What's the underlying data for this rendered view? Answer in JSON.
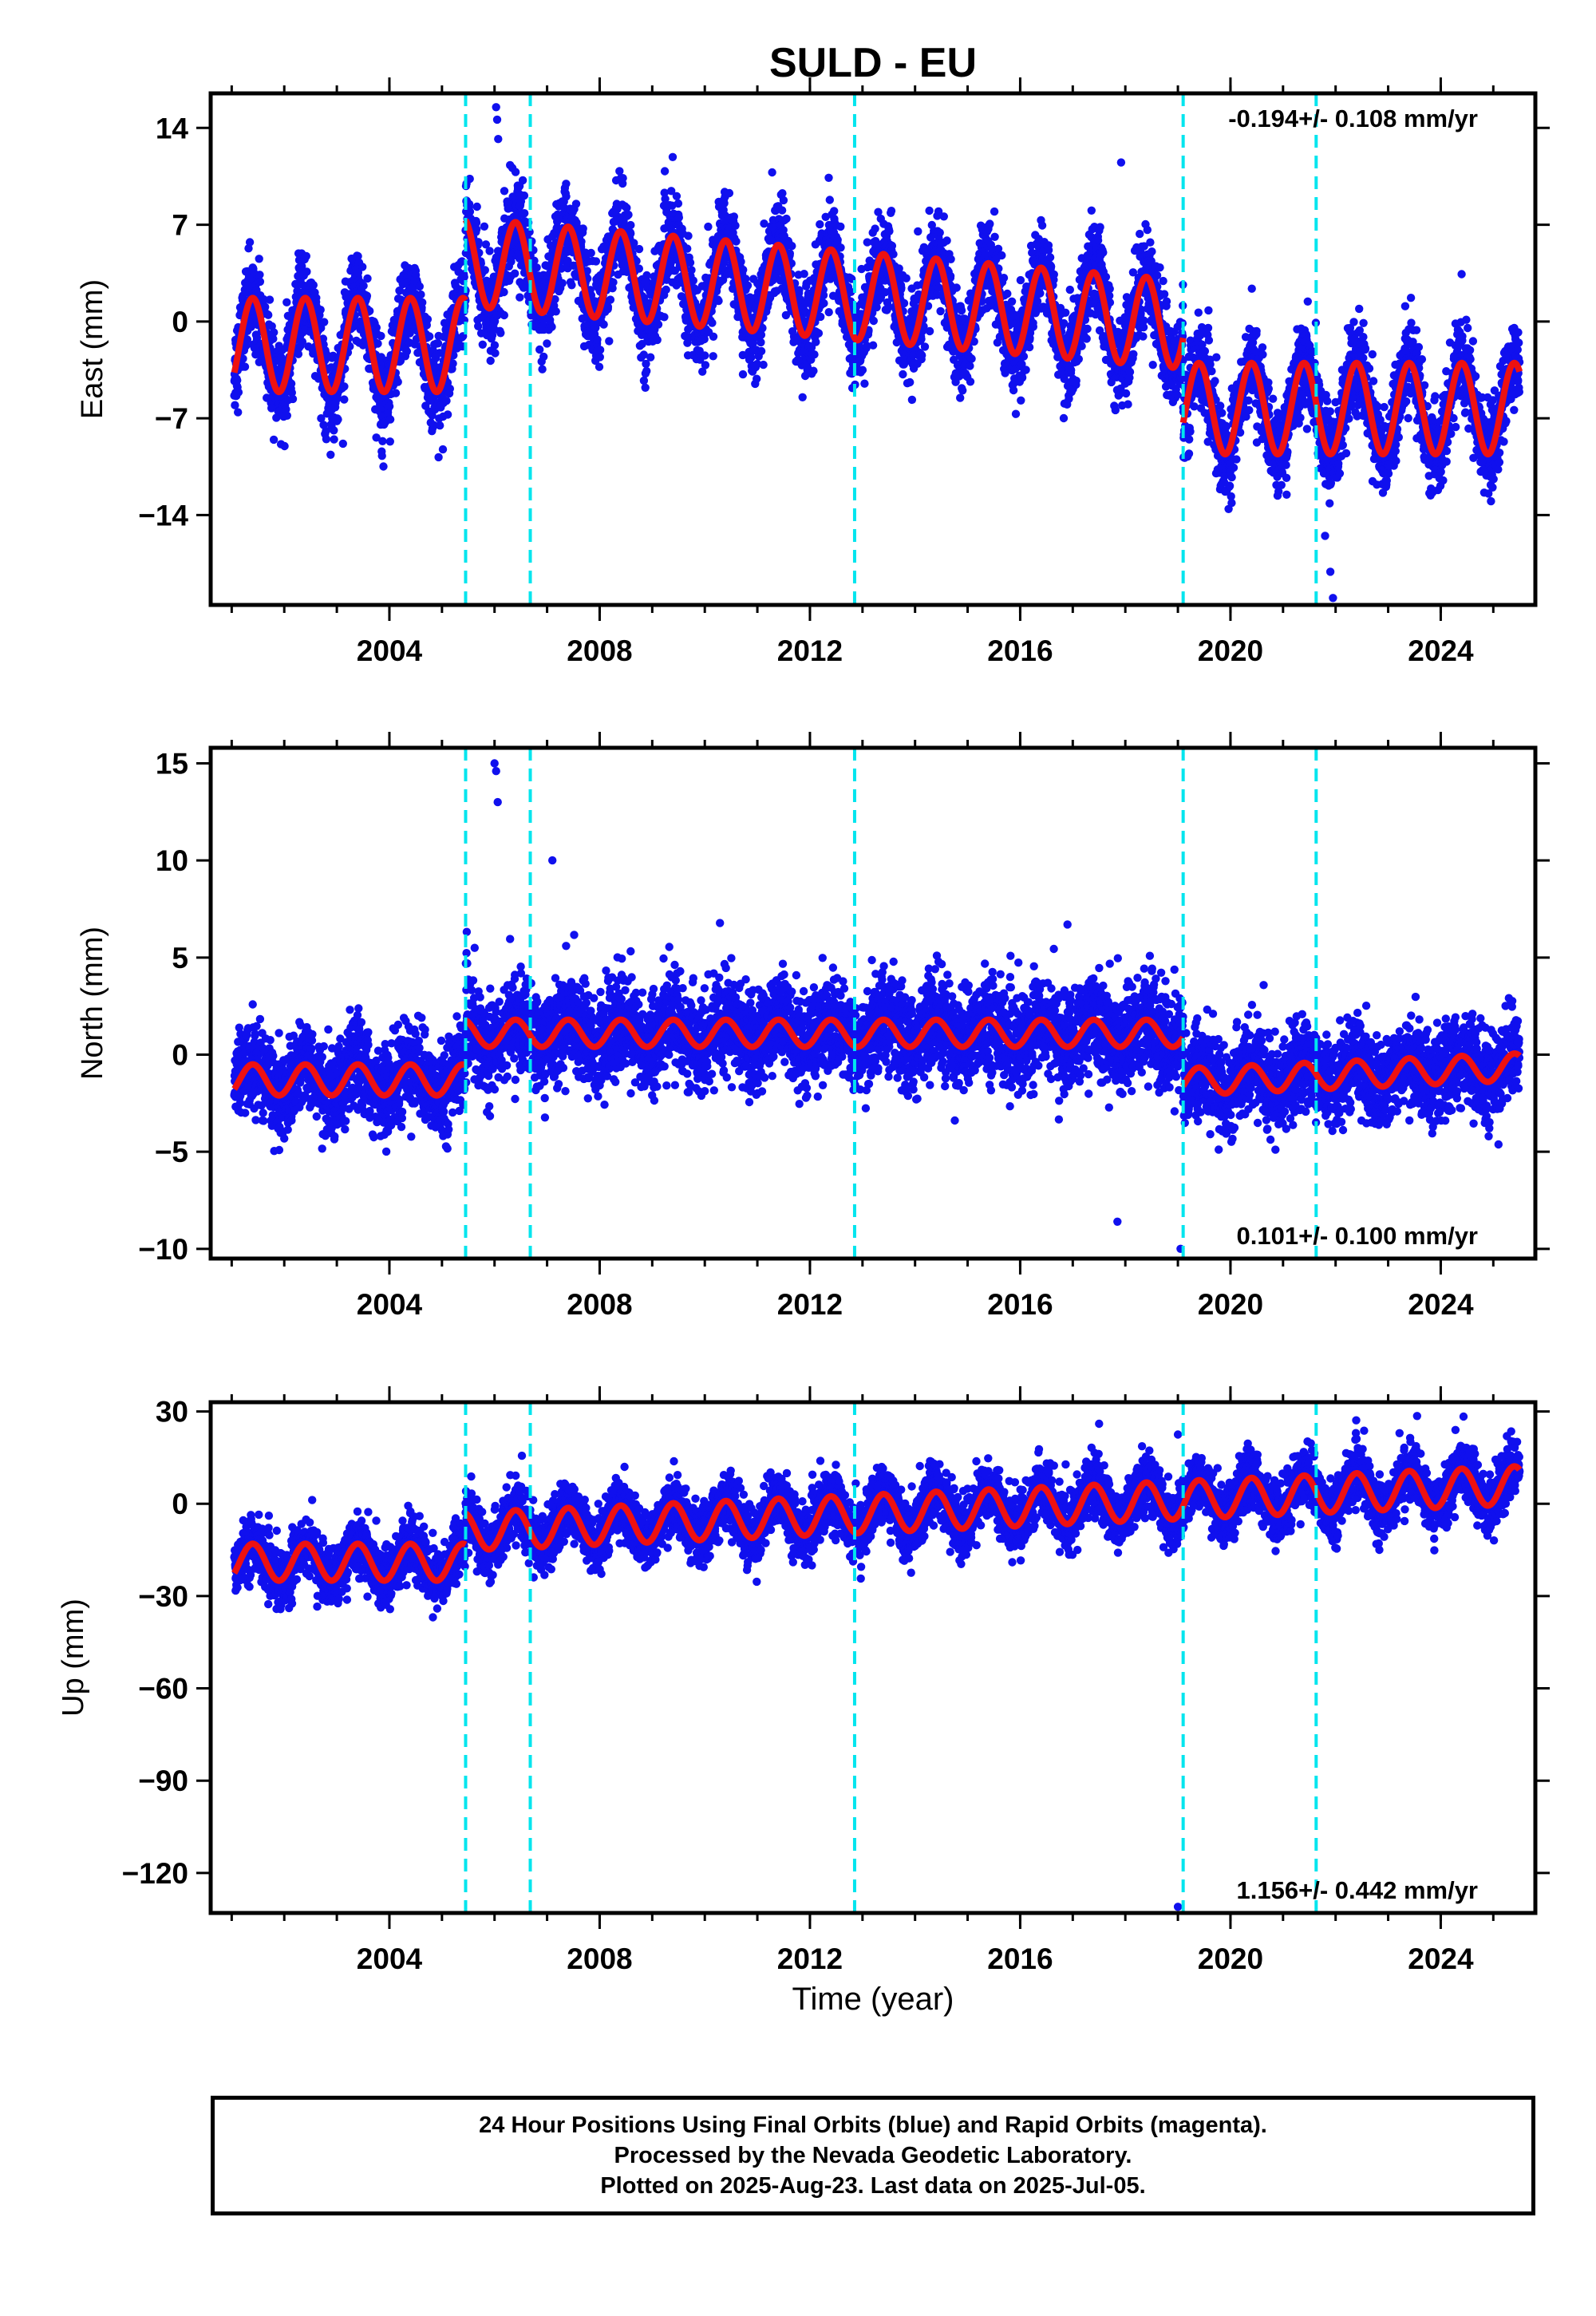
{
  "title": "SULD - EU",
  "xlabel": "Time (year)",
  "colors": {
    "data_points": "#1010ee",
    "model_fit": "#ee1111",
    "event_lines": "#00e5ee",
    "frame": "#000000"
  },
  "footer": {
    "lines": [
      "24 Hour Positions Using Final Orbits (blue) and Rapid Orbits (magenta).",
      "Processed by the Nevada Geodetic Laboratory.",
      "Plotted on 2025-Aug-23. Last data on 2025-Jul-05."
    ]
  },
  "chart_data": [
    {
      "type": "scatter",
      "component": "east",
      "ylabel": "East (mm)",
      "ylim": [
        -20.5,
        16.5
      ],
      "xlim": [
        2000.6,
        2025.8
      ],
      "yticks": [
        14,
        7,
        0,
        -7,
        -14
      ],
      "yticklabels": [
        "14",
        "7",
        "0",
        "−7",
        "−14"
      ],
      "xticks": [
        2004,
        2008,
        2012,
        2016,
        2020,
        2024
      ],
      "xticklabels": [
        "2004",
        "2008",
        "2012",
        "2016",
        "2020",
        "2024"
      ],
      "rate_text": "-0.194+/- 0.108 mm/yr",
      "rate_position": "top-right",
      "event_lines": [
        2005.45,
        2006.68,
        2012.85,
        2019.1,
        2021.63
      ],
      "grid": false,
      "series": [
        {
          "kind": "daily positions",
          "data_range": [
            2001.05,
            2025.5
          ],
          "segments": [
            {
              "start": 2001.05,
              "end": 2005.45,
              "offset": -1.7,
              "rate": 0.0,
              "amplitude": 3.4,
              "noise": 1.6
            },
            {
              "start": 2005.45,
              "end": 2019.1,
              "offset": 4.3,
              "rate": -0.33,
              "amplitude": 3.2,
              "noise": 1.6
            },
            {
              "start": 2019.1,
              "end": 2025.5,
              "offset": -6.3,
              "rate": 0.0,
              "amplitude": 3.3,
              "noise": 1.5
            }
          ],
          "outliers": [
            [
              2006.03,
              15.5
            ],
            [
              2006.05,
              14.6
            ],
            [
              2006.07,
              13.2
            ],
            [
              2017.92,
              11.5
            ],
            [
              2021.9,
              -18.1
            ],
            [
              2021.95,
              -20.0
            ],
            [
              2021.8,
              -15.5
            ]
          ]
        },
        {
          "kind": "model fit",
          "segments": [
            {
              "start": 2001.05,
              "end": 2005.45,
              "offset": -1.7,
              "rate": 0.0,
              "amplitude": 3.4
            },
            {
              "start": 2005.45,
              "end": 2019.1,
              "offset": 4.3,
              "rate": -0.33,
              "amplitude": 3.2
            },
            {
              "start": 2019.1,
              "end": 2025.5,
              "offset": -6.3,
              "rate": 0.0,
              "amplitude": 3.3
            }
          ]
        }
      ]
    },
    {
      "type": "scatter",
      "component": "north",
      "ylabel": "North (mm)",
      "ylim": [
        -10.5,
        15.8
      ],
      "xlim": [
        2000.6,
        2025.8
      ],
      "yticks": [
        15,
        10,
        5,
        0,
        -5,
        -10
      ],
      "yticklabels": [
        "15",
        "10",
        "5",
        "0",
        "−5",
        "−10"
      ],
      "xticks": [
        2004,
        2008,
        2012,
        2016,
        2020,
        2024
      ],
      "xticklabels": [
        "2004",
        "2008",
        "2012",
        "2016",
        "2020",
        "2024"
      ],
      "rate_text": "0.101+/- 0.100 mm/yr",
      "rate_position": "bottom-right",
      "event_lines": [
        2005.45,
        2006.68,
        2012.85,
        2019.1,
        2021.63
      ],
      "grid": false,
      "series": [
        {
          "kind": "daily positions",
          "data_range": [
            2001.05,
            2025.5
          ],
          "segments": [
            {
              "start": 2001.05,
              "end": 2005.45,
              "offset": -1.3,
              "rate": 0.0,
              "amplitude": 0.8,
              "noise": 1.1
            },
            {
              "start": 2005.45,
              "end": 2019.1,
              "offset": 1.1,
              "rate": 0.0,
              "amplitude": 0.7,
              "noise": 1.2
            },
            {
              "start": 2019.1,
              "end": 2025.5,
              "offset": -1.4,
              "rate": 0.12,
              "amplitude": 0.7,
              "noise": 1.1
            }
          ],
          "outliers": [
            [
              2006.0,
              15.0
            ],
            [
              2006.03,
              14.6
            ],
            [
              2006.06,
              13.0
            ],
            [
              2007.1,
              10.0
            ],
            [
              2017.85,
              -8.6
            ],
            [
              2019.05,
              -10.0
            ],
            [
              2016.9,
              6.7
            ]
          ]
        },
        {
          "kind": "model fit",
          "segments": [
            {
              "start": 2001.05,
              "end": 2005.45,
              "offset": -1.3,
              "rate": 0.0,
              "amplitude": 0.8
            },
            {
              "start": 2005.45,
              "end": 2019.1,
              "offset": 1.1,
              "rate": 0.0,
              "amplitude": 0.7
            },
            {
              "start": 2019.1,
              "end": 2025.5,
              "offset": -1.4,
              "rate": 0.12,
              "amplitude": 0.7
            }
          ]
        }
      ]
    },
    {
      "type": "scatter",
      "component": "up",
      "ylabel": "Up (mm)",
      "ylim": [
        -133,
        33
      ],
      "xlim": [
        2000.6,
        2025.8
      ],
      "yticks": [
        30,
        0,
        -30,
        -60,
        -90,
        -120
      ],
      "yticklabels": [
        "30",
        "0",
        "−30",
        "−60",
        "−90",
        "−120"
      ],
      "xticks": [
        2004,
        2008,
        2012,
        2016,
        2020,
        2024
      ],
      "xticklabels": [
        "2004",
        "2008",
        "2012",
        "2016",
        "2020",
        "2024"
      ],
      "rate_text": "1.156+/- 0.442 mm/yr",
      "rate_position": "bottom-right",
      "event_lines": [
        2005.45,
        2006.68,
        2012.85,
        2019.1,
        2021.63
      ],
      "grid": false,
      "series": [
        {
          "kind": "daily positions",
          "data_range": [
            2001.05,
            2025.5
          ],
          "segments": [
            {
              "start": 2001.05,
              "end": 2005.45,
              "offset": -19.0,
              "rate": 0.0,
              "amplitude": 6.0,
              "noise": 4.5
            },
            {
              "start": 2005.45,
              "end": 2025.5,
              "offset": -9.0,
              "rate": 0.75,
              "amplitude": 6.2,
              "noise": 4.5
            }
          ],
          "outliers": [
            [
              2019.0,
              -131.0
            ],
            [
              2019.0,
              22.5
            ],
            [
              2023.55,
              28.5
            ],
            [
              2017.5,
              26.0
            ]
          ]
        },
        {
          "kind": "model fit",
          "segments": [
            {
              "start": 2001.05,
              "end": 2005.45,
              "offset": -19.0,
              "rate": 0.0,
              "amplitude": 6.0
            },
            {
              "start": 2005.45,
              "end": 2025.5,
              "offset": -9.0,
              "rate": 0.75,
              "amplitude": 6.2
            }
          ]
        }
      ]
    }
  ]
}
